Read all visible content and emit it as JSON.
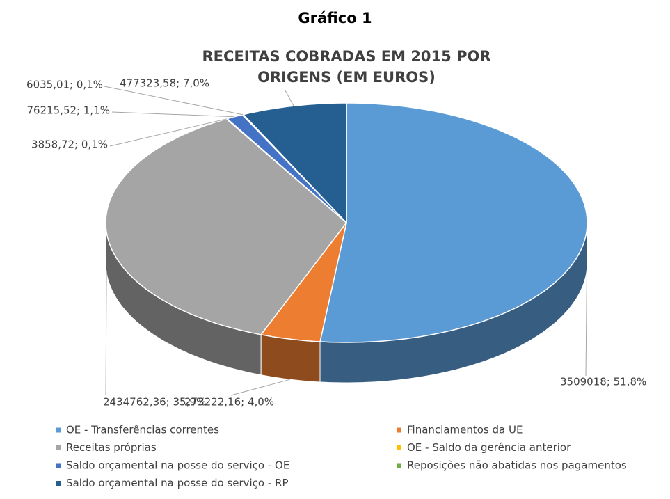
{
  "chart_data": {
    "type": "pie3d",
    "title": "Gráfico 1",
    "subtitle": "RECEITAS COBRADAS EM 2015 POR ORIGENS (EM EUROS)",
    "categories": [
      "OE - Transferências correntes",
      "Financiamentos da UE",
      "Receitas próprias",
      "OE - Saldo da gerência anterior",
      "Saldo orçamental na posse do serviço - OE",
      "Reposições não abatidas nos pagamentos",
      "Saldo orçamental na posse do serviço - RP"
    ],
    "values": [
      3509018,
      273222.16,
      2434762.36,
      3858.72,
      76215.52,
      6035.01,
      477323.58
    ],
    "value_labels": [
      "3509018; 51,8%",
      "273222,16; 4,0%",
      "2434762,36; 35,9%",
      "3858,72; 0,1%",
      "76215,52; 1,1%",
      "6035,01; 0,1%",
      "477323,58; 7,0%"
    ],
    "colors": [
      "#5b9bd5",
      "#ed7d31",
      "#a5a5a5",
      "#ffc000",
      "#4472c4",
      "#70ad47",
      "#255e91"
    ],
    "legend": "bottom"
  }
}
